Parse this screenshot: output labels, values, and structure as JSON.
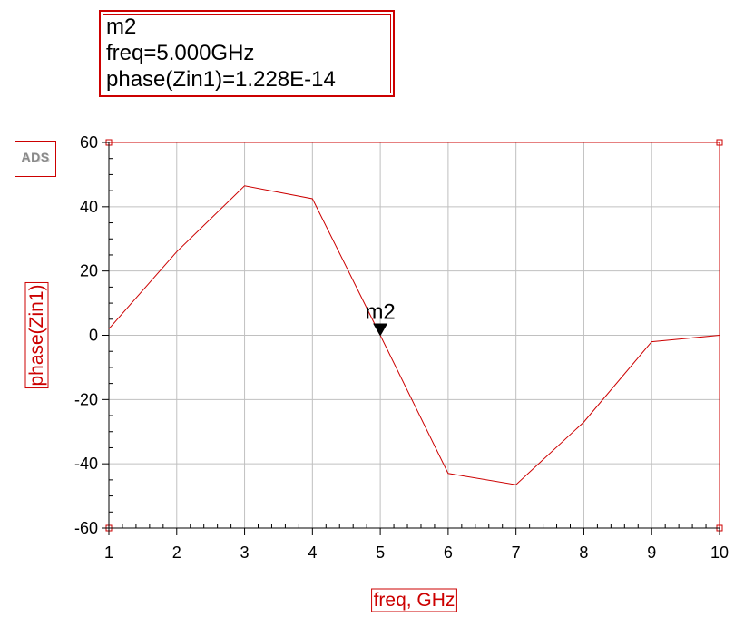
{
  "chart_data": {
    "type": "line",
    "x": [
      1,
      2,
      3,
      4,
      5,
      6,
      7,
      8,
      9,
      10
    ],
    "series": [
      {
        "values": [
          2,
          26,
          46.5,
          42.5,
          0,
          -43,
          -46.5,
          -27,
          -2,
          0
        ]
      }
    ],
    "xlabel": "freq, GHz",
    "ylabel": "phase(Zin1)",
    "xlim": [
      1,
      10
    ],
    "ylim": [
      -60,
      60
    ],
    "xticks": [
      "1",
      "2",
      "3",
      "4",
      "5",
      "6",
      "7",
      "8",
      "9",
      "10"
    ],
    "yticks": [
      "60",
      "40",
      "20",
      "0",
      "-20",
      "-40",
      "-60"
    ],
    "grid": true,
    "line_color": "#cc0000",
    "marker": {
      "name": "m2",
      "x": 5,
      "y": 1.228e-14,
      "readout": [
        "m2",
        "freq=5.000GHz",
        "phase(Zin1)=1.228E-14"
      ]
    }
  },
  "logo_text": "ADS"
}
